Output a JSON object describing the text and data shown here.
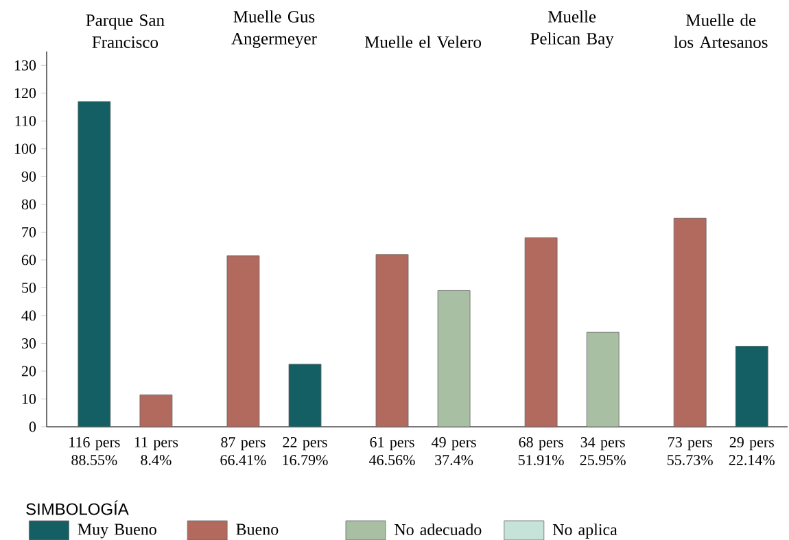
{
  "chart_data": {
    "type": "bar",
    "categories": [
      "116 pers 88.55%",
      "11 pers 8.4%",
      "87 pers 66.41%",
      "22 pers 16.79%",
      "61 pers 46.56%",
      "49 pers 37.4%",
      "68 pers 51.91%",
      "34 pers 25.95%",
      "73 pers 55.73%",
      "29 pers 22.14%"
    ],
    "series": [
      {
        "name": "Muy Bueno",
        "color": "#135f63",
        "values": [
          117,
          null,
          null,
          22.5,
          null,
          null,
          null,
          null,
          null,
          29
        ]
      },
      {
        "name": "Bueno",
        "color": "#b2695e",
        "values": [
          null,
          11.5,
          61.5,
          null,
          62,
          null,
          68,
          null,
          75,
          null
        ]
      },
      {
        "name": "No adecuado",
        "color": "#a9bfa3",
        "values": [
          null,
          null,
          null,
          null,
          null,
          49,
          null,
          34,
          null,
          null
        ]
      },
      {
        "name": "No aplica",
        "color": "#c5e3d9",
        "values": [
          null,
          null,
          null,
          null,
          null,
          null,
          null,
          null,
          null,
          null
        ]
      }
    ],
    "annotations": [
      "Parque San Francisco",
      "Muelle Gus Angermeyer",
      "Muelle el Velero",
      "Muelle Pelican Bay",
      "Muelle de los Artesanos"
    ],
    "legend": "bottom",
    "legend_title": "SIMBOLOGÍA",
    "ylim": [
      0,
      135
    ],
    "yticks": [
      0,
      10,
      20,
      30,
      40,
      50,
      60,
      70,
      80,
      90,
      100,
      110,
      120,
      130
    ]
  }
}
